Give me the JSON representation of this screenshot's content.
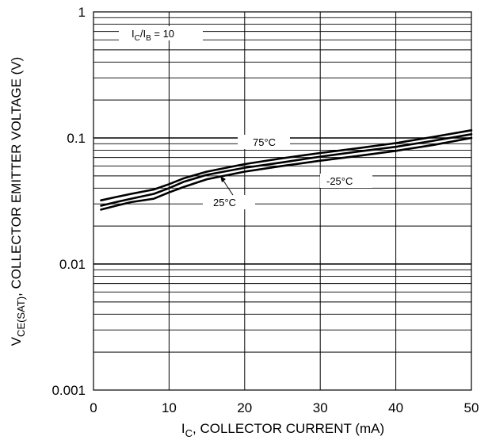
{
  "chart_data": {
    "type": "line",
    "title": "",
    "xlabel": {
      "main": "I",
      "sub": "C",
      "rest": ", COLLECTOR CURRENT (mA)"
    },
    "ylabel": {
      "main": "V",
      "sub": "CE(SAT)",
      "rest": ", COLLECTOR EMITTER VOLTAGE (V)"
    },
    "xlim": [
      0,
      50
    ],
    "ylim": [
      0.001,
      1
    ],
    "yscale": "log",
    "grid": true,
    "x_ticks": [
      0,
      10,
      20,
      30,
      40,
      50
    ],
    "x_tick_labels": [
      "0",
      "10",
      "20",
      "30",
      "40",
      "50"
    ],
    "y_ticks": [
      0.001,
      0.01,
      0.1,
      1
    ],
    "y_tick_labels": [
      "0.001",
      "0.01",
      "0.1",
      "1"
    ],
    "condition": {
      "main": "I",
      "sub1": "C",
      "mid": "/I",
      "sub2": "B",
      "rest": " = 10"
    },
    "series": [
      {
        "name": "75°C",
        "x": [
          1,
          3,
          5,
          8,
          10,
          12,
          15,
          20,
          25,
          30,
          35,
          40,
          45,
          50
        ],
        "y": [
          0.032,
          0.034,
          0.036,
          0.039,
          0.043,
          0.048,
          0.054,
          0.062,
          0.069,
          0.076,
          0.083,
          0.091,
          0.102,
          0.115
        ]
      },
      {
        "name": "25°C",
        "x": [
          1,
          3,
          5,
          8,
          10,
          12,
          15,
          20,
          25,
          30,
          35,
          40,
          45,
          50
        ],
        "y": [
          0.029,
          0.031,
          0.033,
          0.036,
          0.04,
          0.045,
          0.051,
          0.058,
          0.064,
          0.071,
          0.078,
          0.085,
          0.095,
          0.107
        ]
      },
      {
        "name": "-25°C",
        "x": [
          1,
          3,
          5,
          8,
          10,
          12,
          15,
          20,
          25,
          30,
          35,
          40,
          45,
          50
        ],
        "y": [
          0.027,
          0.029,
          0.031,
          0.033,
          0.037,
          0.041,
          0.047,
          0.054,
          0.06,
          0.066,
          0.072,
          0.079,
          0.088,
          0.1
        ]
      }
    ],
    "annotations": {
      "s75": "75°C",
      "s25": "25°C",
      "sm25": "-25°C"
    }
  }
}
